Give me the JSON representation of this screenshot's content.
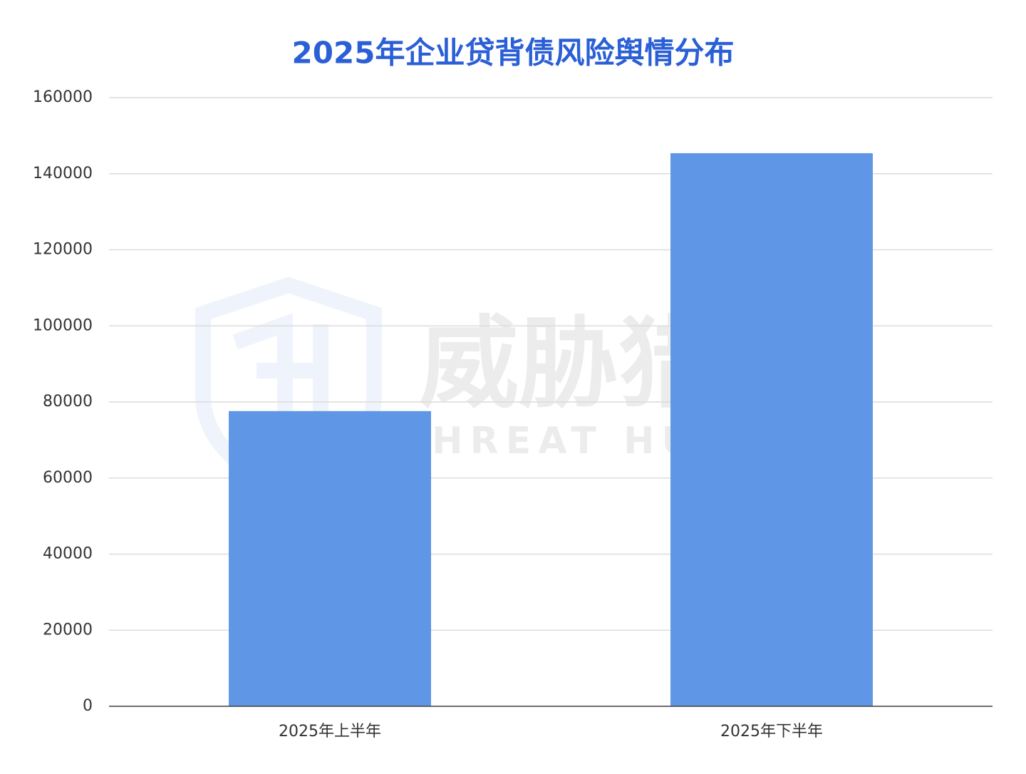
{
  "chart_data": {
    "type": "bar",
    "title": "2025年企业贷背债风险舆情分布",
    "categories": [
      "2025年上半年",
      "2025年下半年"
    ],
    "values": [
      77600,
      145400
    ],
    "color": "#6096e6",
    "ylim": [
      0,
      160000
    ],
    "yticks": [
      0,
      20000,
      40000,
      60000,
      80000,
      100000,
      120000,
      140000,
      160000
    ],
    "grid": true
  },
  "watermark": {
    "title": "威胁猎人",
    "subtitle": "THREAT HUNTER"
  }
}
